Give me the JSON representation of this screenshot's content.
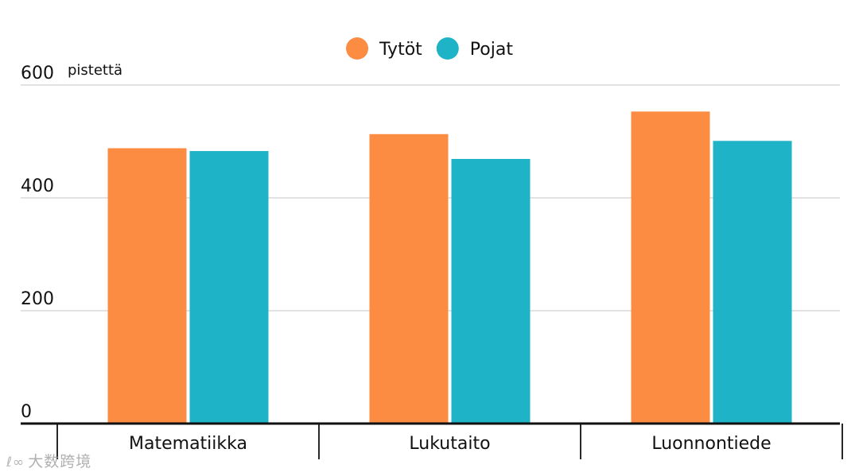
{
  "chart_data": {
    "type": "bar",
    "title": "",
    "ylabel": "pistettä",
    "xlabel": "",
    "ylim": [
      0,
      600
    ],
    "yticks": [
      0,
      200,
      400,
      600
    ],
    "grid": true,
    "legend_position": "top-center",
    "categories": [
      "Matematiikka",
      "Lukutaito",
      "Luonnontiede"
    ],
    "series": [
      {
        "name": "Tytöt",
        "color": "#fb8c41",
        "values": [
          488,
          513,
          553
        ]
      },
      {
        "name": "Pojat",
        "color": "#1fb3c7",
        "values": [
          483,
          469,
          501
        ]
      }
    ]
  },
  "watermark": {
    "logo": "ℓ∞",
    "text": "大数跨境"
  }
}
